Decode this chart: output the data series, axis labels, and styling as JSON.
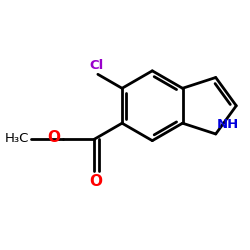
{
  "background": "#ffffff",
  "bond_color": "#000000",
  "cl_color": "#9900cc",
  "nh_color": "#0000dd",
  "o_color": "#ff0000",
  "lw": 2.0,
  "figsize": [
    2.5,
    2.5
  ],
  "dpi": 100,
  "xlim": [
    0,
    10
  ],
  "ylim": [
    0,
    10
  ]
}
